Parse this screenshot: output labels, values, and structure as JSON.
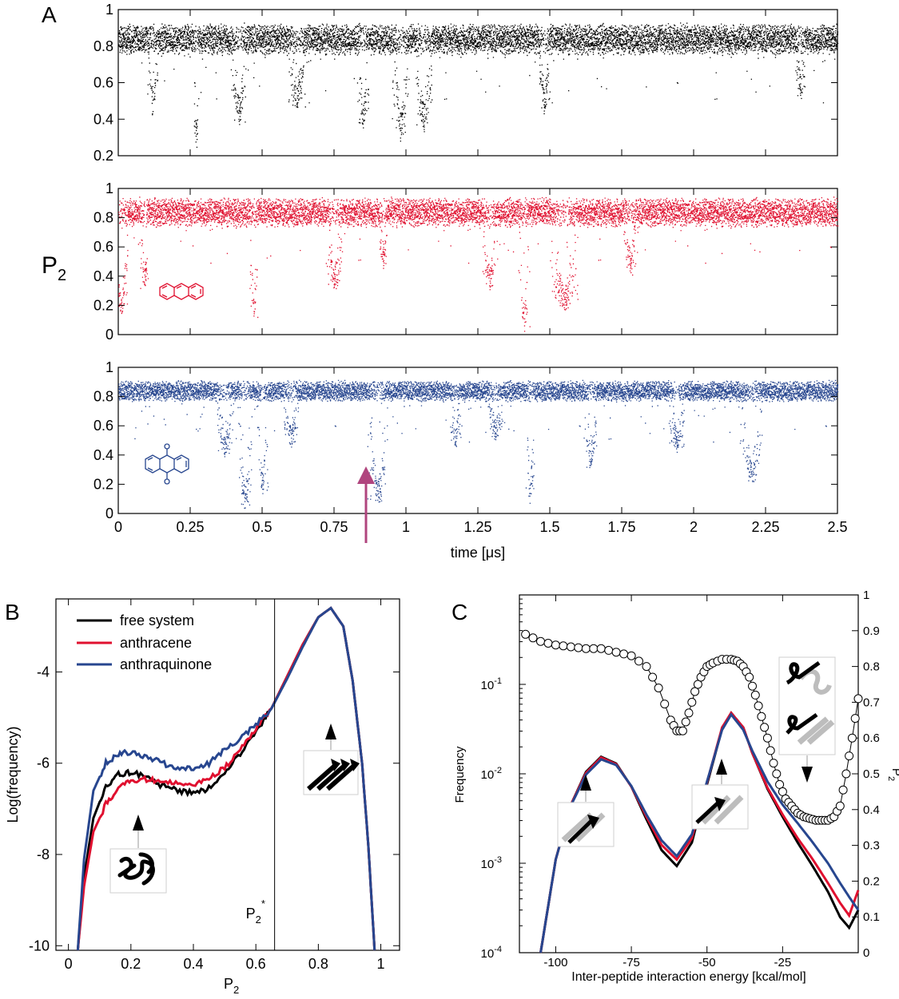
{
  "colors": {
    "free": "#000000",
    "anthracene": "#e0102f",
    "anthraquinone": "#27468f",
    "arrow": "#b0457e",
    "circles": "#000000"
  },
  "chart_data": [
    {
      "panel": "A",
      "type": "scatter",
      "ylabel": "P",
      "ylabel_sub": "2",
      "xlabel": "time [μs]",
      "xlim": [
        0,
        2.5
      ],
      "xticks": [
        "0",
        "0.25",
        "0.5",
        "0.75",
        "1",
        "1.25",
        "1.5",
        "1.75",
        "2",
        "2.25",
        "2.5"
      ],
      "grid": false,
      "series": [
        {
          "color": "#000000",
          "ylim": [
            0.2,
            1
          ],
          "yticks": [
            "0.2",
            "0.4",
            "0.6",
            "0.8",
            "1"
          ],
          "baseline": 0.84,
          "spread": 0.06,
          "dips": [
            [
              0.12,
              0.02,
              0.42
            ],
            [
              0.27,
              0.01,
              0.23
            ],
            [
              0.42,
              0.03,
              0.37
            ],
            [
              0.62,
              0.03,
              0.45
            ],
            [
              0.85,
              0.02,
              0.33
            ],
            [
              0.98,
              0.03,
              0.28
            ],
            [
              1.06,
              0.03,
              0.33
            ],
            [
              1.48,
              0.02,
              0.42
            ],
            [
              2.37,
              0.02,
              0.5
            ]
          ],
          "icon": null
        },
        {
          "color": "#e0102f",
          "ylim": [
            0,
            1
          ],
          "yticks": [
            "0",
            "0.2",
            "0.4",
            "0.6",
            "0.8",
            "1"
          ],
          "baseline": 0.84,
          "spread": 0.07,
          "dips": [
            [
              0.01,
              0.025,
              0.1
            ],
            [
              0.09,
              0.02,
              0.3
            ],
            [
              0.47,
              0.015,
              0.1
            ],
            [
              0.75,
              0.03,
              0.3
            ],
            [
              0.92,
              0.015,
              0.45
            ],
            [
              1.29,
              0.03,
              0.3
            ],
            [
              1.41,
              0.02,
              0.02
            ],
            [
              1.55,
              0.05,
              0.15
            ],
            [
              1.78,
              0.025,
              0.4
            ]
          ],
          "icon": "anthracene-molecule"
        },
        {
          "color": "#27468f",
          "ylim": [
            0,
            1
          ],
          "yticks": [
            "0",
            "0.2",
            "0.4",
            "0.6",
            "0.8",
            "1"
          ],
          "baseline": 0.84,
          "spread": 0.05,
          "dips": [
            [
              0.37,
              0.03,
              0.38
            ],
            [
              0.44,
              0.025,
              0.03
            ],
            [
              0.5,
              0.02,
              0.12
            ],
            [
              0.6,
              0.03,
              0.45
            ],
            [
              0.9,
              0.035,
              0.06
            ],
            [
              1.17,
              0.02,
              0.45
            ],
            [
              1.31,
              0.03,
              0.5
            ],
            [
              1.43,
              0.015,
              0.05
            ],
            [
              1.64,
              0.025,
              0.3
            ],
            [
              1.94,
              0.03,
              0.42
            ],
            [
              2.2,
              0.04,
              0.2
            ]
          ],
          "icon": "anthraquinone-molecule"
        }
      ],
      "annotation": {
        "type": "arrow",
        "x": 0.85,
        "points_to_y": 0.3
      }
    },
    {
      "panel": "B",
      "type": "line",
      "xlabel": "P",
      "xlabel_sub": "2",
      "ylabel": "Log(frequency)",
      "xlim": [
        -0.04,
        1.06
      ],
      "ylim": [
        -10.1,
        -2.4
      ],
      "xticks": [
        0,
        0.2,
        0.4,
        0.6,
        0.8,
        1
      ],
      "xtick_labels": [
        "0",
        "0.2",
        "0.4",
        "0.6",
        "0.8",
        "1"
      ],
      "yticks": [
        -10,
        -8,
        -6,
        -4
      ],
      "ytick_labels": [
        "-10",
        "-8",
        "-6",
        "-4"
      ],
      "legend": {
        "placement": "top-left",
        "entries": [
          "free system",
          "anthracene",
          "anthraquinone"
        ]
      },
      "vline": {
        "x": 0.66,
        "label": "P",
        "label_sub": "2",
        "label_sup": "*"
      },
      "series": [
        {
          "name": "free system",
          "color": "#000000",
          "x": [
            0.03,
            0.05,
            0.08,
            0.12,
            0.16,
            0.2,
            0.25,
            0.3,
            0.35,
            0.4,
            0.45,
            0.5,
            0.55,
            0.6,
            0.65,
            0.7,
            0.75,
            0.8,
            0.84,
            0.88,
            0.91,
            0.94,
            0.96,
            0.98
          ],
          "y": [
            -10.1,
            -8.5,
            -7.2,
            -6.5,
            -6.25,
            -6.2,
            -6.3,
            -6.5,
            -6.6,
            -6.65,
            -6.55,
            -6.2,
            -5.8,
            -5.3,
            -4.8,
            -4.1,
            -3.4,
            -2.8,
            -2.6,
            -3.0,
            -4.2,
            -6.0,
            -7.8,
            -10.1
          ]
        },
        {
          "name": "anthracene",
          "color": "#e0102f",
          "x": [
            0.03,
            0.05,
            0.08,
            0.12,
            0.16,
            0.2,
            0.25,
            0.3,
            0.35,
            0.4,
            0.45,
            0.5,
            0.55,
            0.6,
            0.65,
            0.7,
            0.75,
            0.8,
            0.84,
            0.88,
            0.91,
            0.94,
            0.96,
            0.98
          ],
          "y": [
            -10.1,
            -8.7,
            -7.5,
            -6.9,
            -6.55,
            -6.4,
            -6.35,
            -6.4,
            -6.45,
            -6.45,
            -6.35,
            -6.1,
            -5.7,
            -5.25,
            -4.8,
            -4.1,
            -3.4,
            -2.8,
            -2.6,
            -3.0,
            -4.2,
            -6.0,
            -7.8,
            -10.1
          ]
        },
        {
          "name": "anthraquinone",
          "color": "#27468f",
          "x": [
            0.03,
            0.05,
            0.08,
            0.12,
            0.16,
            0.2,
            0.25,
            0.3,
            0.35,
            0.4,
            0.45,
            0.5,
            0.55,
            0.6,
            0.65,
            0.7,
            0.75,
            0.8,
            0.84,
            0.88,
            0.91,
            0.94,
            0.96,
            0.98
          ],
          "y": [
            -10.1,
            -8.1,
            -6.6,
            -6.0,
            -5.8,
            -5.75,
            -5.85,
            -6.0,
            -6.1,
            -6.1,
            -6.0,
            -5.7,
            -5.45,
            -5.15,
            -4.8,
            -4.15,
            -3.45,
            -2.8,
            -2.6,
            -3.0,
            -4.2,
            -6.0,
            -7.8,
            -10.1
          ]
        }
      ],
      "icons": [
        {
          "name": "disordered-aggregate-icon",
          "x": 0.23,
          "y": -8.65,
          "arrow": "up"
        },
        {
          "name": "beta-sheet-icon",
          "x": 0.82,
          "y": -6.4,
          "arrow": "up"
        }
      ]
    },
    {
      "panel": "C",
      "type": "line",
      "xlabel": "Inter-peptide interaction energy [kcal/mol]",
      "ylabel": "Frequency",
      "ylabel_right": "P",
      "ylabel_right_sub": "2",
      "xlim": [
        -112,
        0
      ],
      "ylim": [
        0.0001,
        1
      ],
      "yscale": "log",
      "y2lim": [
        0,
        1
      ],
      "xticks": [
        -100,
        -75,
        -50,
        -25
      ],
      "xtick_labels": [
        "-100",
        "-75",
        "-50",
        "-25"
      ],
      "yticks": [
        0.0001,
        0.001,
        0.01,
        0.1
      ],
      "ytick_labels": [
        [
          "10",
          "-4"
        ],
        [
          "10",
          "-3"
        ],
        [
          "10",
          "-2"
        ],
        [
          "10",
          "-1"
        ]
      ],
      "y2ticks": [
        0,
        0.1,
        0.2,
        0.3,
        0.4,
        0.5,
        0.6,
        0.7,
        0.8,
        0.9,
        1
      ],
      "y2tick_labels": [
        "0",
        "0.1",
        "0.2",
        "0.3",
        "0.4",
        "0.5",
        "0.6",
        "0.7",
        "0.8",
        "0.9",
        "1"
      ],
      "series": [
        {
          "name": "free system",
          "color": "#000000",
          "x": [
            -105,
            -100,
            -95,
            -90,
            -85,
            -80,
            -75,
            -70,
            -65,
            -60,
            -55,
            -50,
            -45,
            -42,
            -38,
            -35,
            -30,
            -25,
            -20,
            -15,
            -10,
            -6,
            -3,
            0
          ],
          "y": [
            0.0001,
            0.0011,
            0.0045,
            0.0105,
            0.0155,
            0.013,
            0.0072,
            0.0031,
            0.0014,
            0.00093,
            0.0017,
            0.0076,
            0.032,
            0.048,
            0.033,
            0.017,
            0.0068,
            0.0033,
            0.0017,
            0.00092,
            0.00048,
            0.00025,
            0.00019,
            0.0003
          ]
        },
        {
          "name": "anthracene",
          "color": "#e0102f",
          "x": [
            -105,
            -100,
            -95,
            -90,
            -85,
            -80,
            -75,
            -70,
            -65,
            -60,
            -55,
            -50,
            -45,
            -42,
            -38,
            -35,
            -30,
            -25,
            -20,
            -15,
            -10,
            -6,
            -3,
            0
          ],
          "y": [
            0.0001,
            0.0011,
            0.0045,
            0.0102,
            0.0152,
            0.0128,
            0.0072,
            0.0033,
            0.0016,
            0.0011,
            0.0019,
            0.008,
            0.033,
            0.048,
            0.033,
            0.017,
            0.007,
            0.0035,
            0.0019,
            0.0011,
            0.0006,
            0.00036,
            0.00026,
            0.0005
          ]
        },
        {
          "name": "anthraquinone",
          "color": "#27468f",
          "x": [
            -105,
            -100,
            -95,
            -90,
            -85,
            -80,
            -75,
            -70,
            -65,
            -60,
            -55,
            -50,
            -45,
            -42,
            -38,
            -35,
            -30,
            -25,
            -20,
            -15,
            -10,
            -6,
            -3,
            0
          ],
          "y": [
            0.0001,
            0.0011,
            0.0044,
            0.0098,
            0.0145,
            0.0125,
            0.0073,
            0.0035,
            0.0018,
            0.0012,
            0.0021,
            0.0082,
            0.031,
            0.046,
            0.031,
            0.018,
            0.0082,
            0.0045,
            0.0028,
            0.0017,
            0.001,
            0.0006,
            0.00042,
            0.0003
          ]
        },
        {
          "name": "P2",
          "axis": "right",
          "marker": "open-circle",
          "color": "#000000",
          "x": [
            -110,
            -105,
            -100,
            -95,
            -90,
            -85,
            -80,
            -75,
            -70,
            -66,
            -62,
            -60,
            -58,
            -56,
            -54,
            -52,
            -50,
            -48,
            -45,
            -42,
            -40,
            -38,
            -36,
            -34,
            -32,
            -30,
            -28,
            -26,
            -24,
            -22,
            -20,
            -18,
            -16,
            -14,
            -12,
            -10,
            -8,
            -6,
            -4,
            -2,
            0
          ],
          "y": [
            0.89,
            0.87,
            0.86,
            0.855,
            0.85,
            0.85,
            0.84,
            0.83,
            0.8,
            0.74,
            0.65,
            0.62,
            0.62,
            0.67,
            0.73,
            0.77,
            0.8,
            0.81,
            0.82,
            0.82,
            0.815,
            0.8,
            0.77,
            0.72,
            0.66,
            0.6,
            0.53,
            0.47,
            0.43,
            0.41,
            0.39,
            0.38,
            0.375,
            0.37,
            0.37,
            0.37,
            0.38,
            0.41,
            0.5,
            0.6,
            0.71
          ]
        }
      ],
      "icons": [
        {
          "name": "single-strand-sheet-icon",
          "x": -85,
          "y": 0.0017,
          "arrow": "up"
        },
        {
          "name": "two-strand-sheet-icon",
          "x": -42,
          "y": 0.0016,
          "arrow": "up"
        },
        {
          "name": "mixed-aggregate-icons",
          "x": -16,
          "y": 0.05,
          "arrow": "down"
        }
      ]
    }
  ]
}
